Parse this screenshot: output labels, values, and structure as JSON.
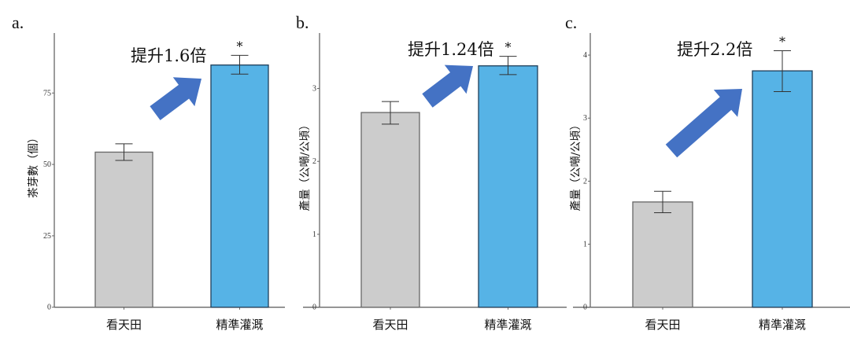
{
  "chart_data": [
    {
      "type": "bar",
      "panel_label": "a.",
      "categories": [
        "看天田",
        "精準灌溉"
      ],
      "values": [
        54.3,
        84.8
      ],
      "error_bars": [
        [
          51.4,
          57.2
        ],
        [
          81.6,
          88.2
        ]
      ],
      "colors": [
        "#cccccc",
        "#56b3e6"
      ],
      "significance": [
        "",
        "*"
      ],
      "ylabel": "茶芽數（個）",
      "yticks": [
        0,
        25,
        50,
        75
      ],
      "ylim": [
        0,
        96
      ],
      "annotation": "提升1.6倍",
      "arrow_color": "#4472c4",
      "grid": false
    },
    {
      "type": "bar",
      "panel_label": "b.",
      "categories": [
        "看天田",
        "精準灌溉"
      ],
      "values": [
        2.67,
        3.31
      ],
      "error_bars": [
        [
          2.51,
          2.82
        ],
        [
          3.19,
          3.44
        ]
      ],
      "colors": [
        "#cccccc",
        "#56b3e6"
      ],
      "significance": [
        "",
        "*"
      ],
      "ylabel": "產量（公噸/公頃）",
      "yticks": [
        0,
        1,
        2,
        3
      ],
      "ylim": [
        0,
        3.76
      ],
      "annotation": "提升1.24倍",
      "arrow_color": "#4472c4",
      "grid": false
    },
    {
      "type": "bar",
      "panel_label": "c.",
      "categories": [
        "看天田",
        "精準灌溉"
      ],
      "values": [
        1.67,
        3.75
      ],
      "error_bars": [
        [
          1.5,
          1.84
        ],
        [
          3.42,
          4.07
        ]
      ],
      "colors": [
        "#cccccc",
        "#56b3e6"
      ],
      "significance": [
        "",
        "*"
      ],
      "ylabel": "產量（公噸/公頃）",
      "yticks": [
        0,
        1,
        2,
        3,
        4
      ],
      "ylim": [
        0,
        4.35
      ],
      "annotation": "提升2.2倍",
      "arrow_color": "#4472c4",
      "grid": false
    }
  ]
}
